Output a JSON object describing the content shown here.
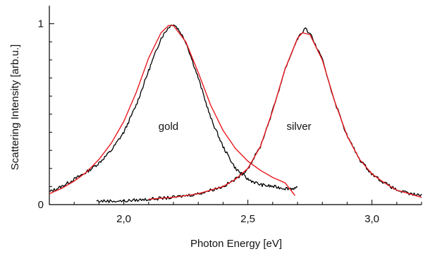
{
  "chart_data": {
    "type": "line",
    "title": "",
    "xlabel": "Photon Energy [eV]",
    "ylabel": "Scattering Intensity [arb.u.]",
    "xlim": [
      1.7,
      3.2
    ],
    "ylim": [
      0,
      1.1
    ],
    "x_ticks": [
      {
        "value": 2.0,
        "label": "2,0"
      },
      {
        "value": 2.5,
        "label": "2,5"
      },
      {
        "value": 3.0,
        "label": "3,0"
      }
    ],
    "y_ticks": [
      {
        "value": 0,
        "label": "0"
      },
      {
        "value": 1,
        "label": "1"
      }
    ],
    "grid": false,
    "legend": "none",
    "annotations": [
      {
        "text": "gold",
        "x": 2.18,
        "y": 0.5
      },
      {
        "text": "silver",
        "x": 2.72,
        "y": 0.5
      }
    ],
    "series": [
      {
        "kind": "measured",
        "color": "#000000",
        "x": [
          1.7,
          1.75,
          1.8,
          1.85,
          1.9,
          1.95,
          2.0,
          2.05,
          2.1,
          2.15,
          2.18,
          2.2,
          2.22,
          2.25,
          2.3,
          2.35,
          2.4,
          2.45,
          2.5,
          2.55,
          2.6,
          2.65,
          2.7
        ],
        "y": [
          0.07,
          0.1,
          0.14,
          0.18,
          0.23,
          0.3,
          0.4,
          0.55,
          0.74,
          0.92,
          0.98,
          1.0,
          0.97,
          0.9,
          0.7,
          0.48,
          0.32,
          0.2,
          0.14,
          0.11,
          0.1,
          0.09,
          0.09
        ]
      },
      {
        "kind": "fit",
        "color": "#e8181e",
        "x": [
          1.7,
          1.75,
          1.8,
          1.85,
          1.9,
          1.95,
          2.0,
          2.05,
          2.1,
          2.15,
          2.18,
          2.2,
          2.25,
          2.3,
          2.35,
          2.4,
          2.45,
          2.5,
          2.55,
          2.6,
          2.65,
          2.69
        ],
        "y": [
          0.06,
          0.09,
          0.13,
          0.18,
          0.25,
          0.34,
          0.46,
          0.62,
          0.81,
          0.95,
          0.99,
          0.99,
          0.9,
          0.73,
          0.55,
          0.41,
          0.31,
          0.24,
          0.19,
          0.15,
          0.12,
          0.05
        ]
      },
      {
        "kind": "measured",
        "color": "#000000",
        "x": [
          1.89,
          1.95,
          2.0,
          2.1,
          2.2,
          2.3,
          2.4,
          2.45,
          2.5,
          2.55,
          2.6,
          2.65,
          2.7,
          2.73,
          2.75,
          2.8,
          2.85,
          2.9,
          2.95,
          3.0,
          3.05,
          3.1,
          3.15,
          3.2
        ],
        "y": [
          0.02,
          0.02,
          0.02,
          0.03,
          0.04,
          0.06,
          0.1,
          0.14,
          0.2,
          0.32,
          0.52,
          0.75,
          0.92,
          0.97,
          0.95,
          0.8,
          0.57,
          0.38,
          0.25,
          0.17,
          0.12,
          0.08,
          0.06,
          0.05
        ]
      },
      {
        "kind": "fit",
        "color": "#e8181e",
        "x": [
          2.1,
          2.2,
          2.3,
          2.4,
          2.45,
          2.5,
          2.55,
          2.6,
          2.65,
          2.7,
          2.72,
          2.75,
          2.8,
          2.85,
          2.9,
          2.95,
          3.0,
          3.05,
          3.1,
          3.15,
          3.2
        ],
        "y": [
          0.03,
          0.04,
          0.06,
          0.1,
          0.14,
          0.2,
          0.32,
          0.52,
          0.75,
          0.92,
          0.95,
          0.94,
          0.8,
          0.57,
          0.38,
          0.25,
          0.17,
          0.12,
          0.08,
          0.06,
          0.04
        ]
      }
    ]
  }
}
